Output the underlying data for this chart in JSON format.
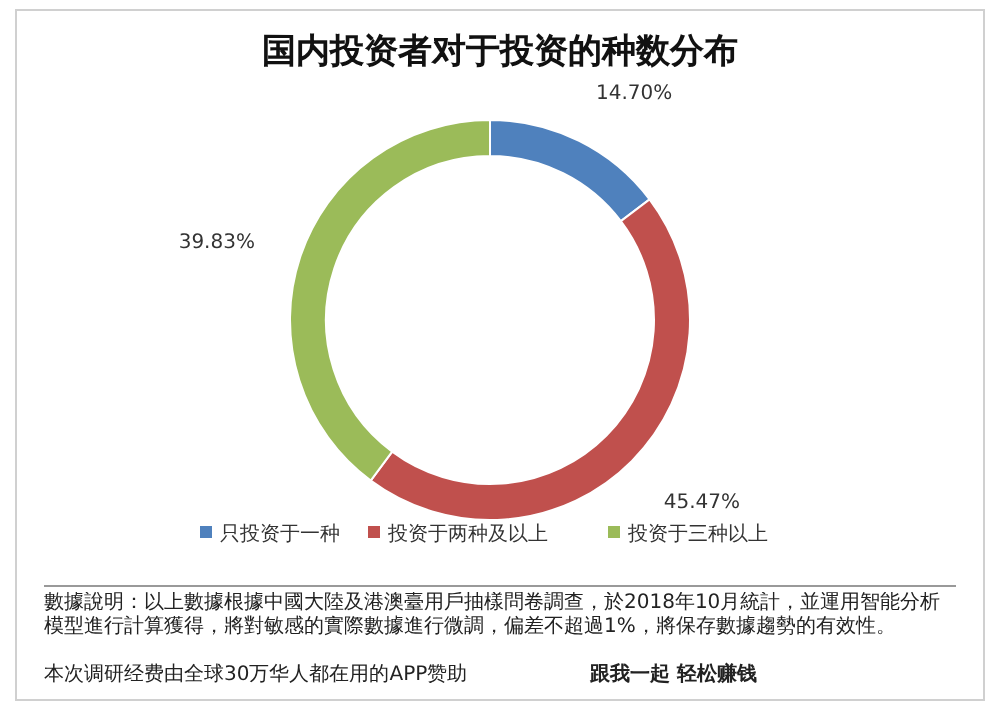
{
  "chart_data": {
    "type": "donut",
    "title": "国内投资者对于投资的种数分布",
    "categories": [
      "只投资于一种",
      "投资于两种及以上",
      "投资于三种以上"
    ],
    "values": [
      14.7,
      45.47,
      39.83
    ],
    "colors": [
      "#4f81bd",
      "#c0504d",
      "#9bbb59"
    ],
    "value_labels": [
      "14.70%",
      "45.47%",
      "39.83%"
    ],
    "legend": "bottom",
    "annotations": [
      "數據說明：以上數據根據中國大陸及港澳臺用戶抽樣問卷調查，於2018年10月統計，並運用智能分析模型進行計算獲得，將對敏感的實際數據進行微調，偏差不超過1%，將保存數據趨勢的有效性。",
      "本次调研经费由全球30万华人都在用的APP赞助",
      "跟我一起 轻松赚钱"
    ]
  }
}
